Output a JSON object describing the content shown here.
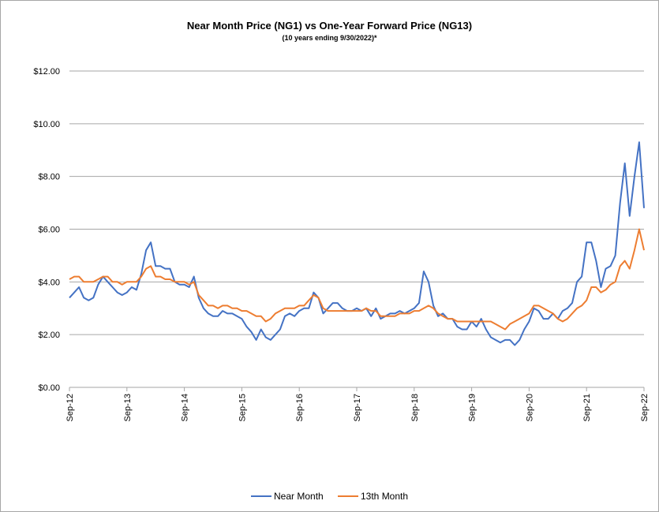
{
  "chart_data": {
    "type": "line",
    "title": "Near Month Price (NG1) vs One-Year Forward Price (NG13)",
    "subtitle": "(10 years ending  9/30/2022)*",
    "ylim": [
      0,
      12
    ],
    "yticks": [
      0,
      2,
      4,
      6,
      8,
      10,
      12
    ],
    "ytick_labels": [
      "$0.00",
      "$2.00",
      "$4.00",
      "$6.00",
      "$8.00",
      "$10.00",
      "$12.00"
    ],
    "xlim": [
      "2012-09",
      "2022-09"
    ],
    "xtick_labels": [
      "Sep-12",
      "Sep-13",
      "Sep-14",
      "Sep-15",
      "Sep-16",
      "Sep-17",
      "Sep-18",
      "Sep-19",
      "Sep-20",
      "Sep-21",
      "Sep-22"
    ],
    "grid": "horizontal",
    "legend_position": "bottom",
    "colors": {
      "near": "#4472c4",
      "thirteenth": "#ed7d31",
      "grid": "#a6a6a6"
    },
    "series": [
      {
        "name": "Near Month",
        "key": "near",
        "x": [
          "2012-09",
          "2012-10",
          "2012-11",
          "2012-12",
          "2013-01",
          "2013-02",
          "2013-03",
          "2013-04",
          "2013-05",
          "2013-06",
          "2013-07",
          "2013-08",
          "2013-09",
          "2013-10",
          "2013-11",
          "2013-12",
          "2014-01",
          "2014-02",
          "2014-03",
          "2014-04",
          "2014-05",
          "2014-06",
          "2014-07",
          "2014-08",
          "2014-09",
          "2014-10",
          "2014-11",
          "2014-12",
          "2015-01",
          "2015-02",
          "2015-03",
          "2015-04",
          "2015-05",
          "2015-06",
          "2015-07",
          "2015-08",
          "2015-09",
          "2015-10",
          "2015-11",
          "2015-12",
          "2016-01",
          "2016-02",
          "2016-03",
          "2016-04",
          "2016-05",
          "2016-06",
          "2016-07",
          "2016-08",
          "2016-09",
          "2016-10",
          "2016-11",
          "2016-12",
          "2017-01",
          "2017-02",
          "2017-03",
          "2017-04",
          "2017-05",
          "2017-06",
          "2017-07",
          "2017-08",
          "2017-09",
          "2017-10",
          "2017-11",
          "2017-12",
          "2018-01",
          "2018-02",
          "2018-03",
          "2018-04",
          "2018-05",
          "2018-06",
          "2018-07",
          "2018-08",
          "2018-09",
          "2018-10",
          "2018-11",
          "2018-12",
          "2019-01",
          "2019-02",
          "2019-03",
          "2019-04",
          "2019-05",
          "2019-06",
          "2019-07",
          "2019-08",
          "2019-09",
          "2019-10",
          "2019-11",
          "2019-12",
          "2020-01",
          "2020-02",
          "2020-03",
          "2020-04",
          "2020-05",
          "2020-06",
          "2020-07",
          "2020-08",
          "2020-09",
          "2020-10",
          "2020-11",
          "2020-12",
          "2021-01",
          "2021-02",
          "2021-03",
          "2021-04",
          "2021-05",
          "2021-06",
          "2021-07",
          "2021-08",
          "2021-09",
          "2021-10",
          "2021-11",
          "2021-12",
          "2022-01",
          "2022-02",
          "2022-03",
          "2022-04",
          "2022-05",
          "2022-06",
          "2022-07",
          "2022-08",
          "2022-09"
        ],
        "values": [
          3.4,
          3.6,
          3.8,
          3.4,
          3.3,
          3.4,
          3.9,
          4.2,
          4.0,
          3.8,
          3.6,
          3.5,
          3.6,
          3.8,
          3.7,
          4.3,
          5.2,
          5.5,
          4.6,
          4.6,
          4.5,
          4.5,
          4.0,
          3.9,
          3.9,
          3.8,
          4.2,
          3.4,
          3.0,
          2.8,
          2.7,
          2.7,
          2.9,
          2.8,
          2.8,
          2.7,
          2.6,
          2.3,
          2.1,
          1.8,
          2.2,
          1.9,
          1.8,
          2.0,
          2.2,
          2.7,
          2.8,
          2.7,
          2.9,
          3.0,
          3.0,
          3.6,
          3.4,
          2.8,
          3.0,
          3.2,
          3.2,
          3.0,
          2.9,
          2.9,
          3.0,
          2.9,
          3.0,
          2.7,
          3.0,
          2.6,
          2.7,
          2.8,
          2.8,
          2.9,
          2.8,
          2.9,
          3.0,
          3.2,
          4.4,
          4.0,
          3.1,
          2.7,
          2.8,
          2.6,
          2.6,
          2.3,
          2.2,
          2.2,
          2.5,
          2.3,
          2.6,
          2.2,
          1.9,
          1.8,
          1.7,
          1.8,
          1.8,
          1.6,
          1.8,
          2.2,
          2.5,
          3.0,
          2.9,
          2.6,
          2.6,
          2.8,
          2.6,
          2.9,
          3.0,
          3.2,
          4.0,
          4.2,
          5.5,
          5.5,
          4.8,
          3.8,
          4.5,
          4.6,
          5.0,
          7.0,
          8.5,
          6.5,
          8.0,
          9.3,
          6.8
        ]
      },
      {
        "name": "13th Month",
        "key": "thirteenth",
        "x": [
          "2012-09",
          "2012-10",
          "2012-11",
          "2012-12",
          "2013-01",
          "2013-02",
          "2013-03",
          "2013-04",
          "2013-05",
          "2013-06",
          "2013-07",
          "2013-08",
          "2013-09",
          "2013-10",
          "2013-11",
          "2013-12",
          "2014-01",
          "2014-02",
          "2014-03",
          "2014-04",
          "2014-05",
          "2014-06",
          "2014-07",
          "2014-08",
          "2014-09",
          "2014-10",
          "2014-11",
          "2014-12",
          "2015-01",
          "2015-02",
          "2015-03",
          "2015-04",
          "2015-05",
          "2015-06",
          "2015-07",
          "2015-08",
          "2015-09",
          "2015-10",
          "2015-11",
          "2015-12",
          "2016-01",
          "2016-02",
          "2016-03",
          "2016-04",
          "2016-05",
          "2016-06",
          "2016-07",
          "2016-08",
          "2016-09",
          "2016-10",
          "2016-11",
          "2016-12",
          "2017-01",
          "2017-02",
          "2017-03",
          "2017-04",
          "2017-05",
          "2017-06",
          "2017-07",
          "2017-08",
          "2017-09",
          "2017-10",
          "2017-11",
          "2017-12",
          "2018-01",
          "2018-02",
          "2018-03",
          "2018-04",
          "2018-05",
          "2018-06",
          "2018-07",
          "2018-08",
          "2018-09",
          "2018-10",
          "2018-11",
          "2018-12",
          "2019-01",
          "2019-02",
          "2019-03",
          "2019-04",
          "2019-05",
          "2019-06",
          "2019-07",
          "2019-08",
          "2019-09",
          "2019-10",
          "2019-11",
          "2019-12",
          "2020-01",
          "2020-02",
          "2020-03",
          "2020-04",
          "2020-05",
          "2020-06",
          "2020-07",
          "2020-08",
          "2020-09",
          "2020-10",
          "2020-11",
          "2020-12",
          "2021-01",
          "2021-02",
          "2021-03",
          "2021-04",
          "2021-05",
          "2021-06",
          "2021-07",
          "2021-08",
          "2021-09",
          "2021-10",
          "2021-11",
          "2021-12",
          "2022-01",
          "2022-02",
          "2022-03",
          "2022-04",
          "2022-05",
          "2022-06",
          "2022-07",
          "2022-08",
          "2022-09"
        ],
        "values": [
          4.1,
          4.2,
          4.2,
          4.0,
          4.0,
          4.0,
          4.1,
          4.2,
          4.2,
          4.0,
          4.0,
          3.9,
          4.0,
          4.0,
          4.0,
          4.2,
          4.5,
          4.6,
          4.2,
          4.2,
          4.1,
          4.1,
          4.0,
          4.0,
          4.0,
          3.9,
          4.0,
          3.5,
          3.3,
          3.1,
          3.1,
          3.0,
          3.1,
          3.1,
          3.0,
          3.0,
          2.9,
          2.9,
          2.8,
          2.7,
          2.7,
          2.5,
          2.6,
          2.8,
          2.9,
          3.0,
          3.0,
          3.0,
          3.1,
          3.1,
          3.3,
          3.5,
          3.4,
          3.0,
          2.9,
          2.9,
          2.9,
          2.9,
          2.9,
          2.9,
          2.9,
          2.9,
          3.0,
          2.9,
          2.9,
          2.7,
          2.7,
          2.7,
          2.7,
          2.8,
          2.8,
          2.8,
          2.9,
          2.9,
          3.0,
          3.1,
          3.0,
          2.8,
          2.7,
          2.6,
          2.6,
          2.5,
          2.5,
          2.5,
          2.5,
          2.5,
          2.5,
          2.5,
          2.5,
          2.4,
          2.3,
          2.2,
          2.4,
          2.5,
          2.6,
          2.7,
          2.8,
          3.1,
          3.1,
          3.0,
          2.9,
          2.8,
          2.6,
          2.5,
          2.6,
          2.8,
          3.0,
          3.1,
          3.3,
          3.8,
          3.8,
          3.6,
          3.7,
          3.9,
          4.0,
          4.6,
          4.8,
          4.5,
          5.2,
          6.0,
          5.2
        ]
      }
    ]
  }
}
